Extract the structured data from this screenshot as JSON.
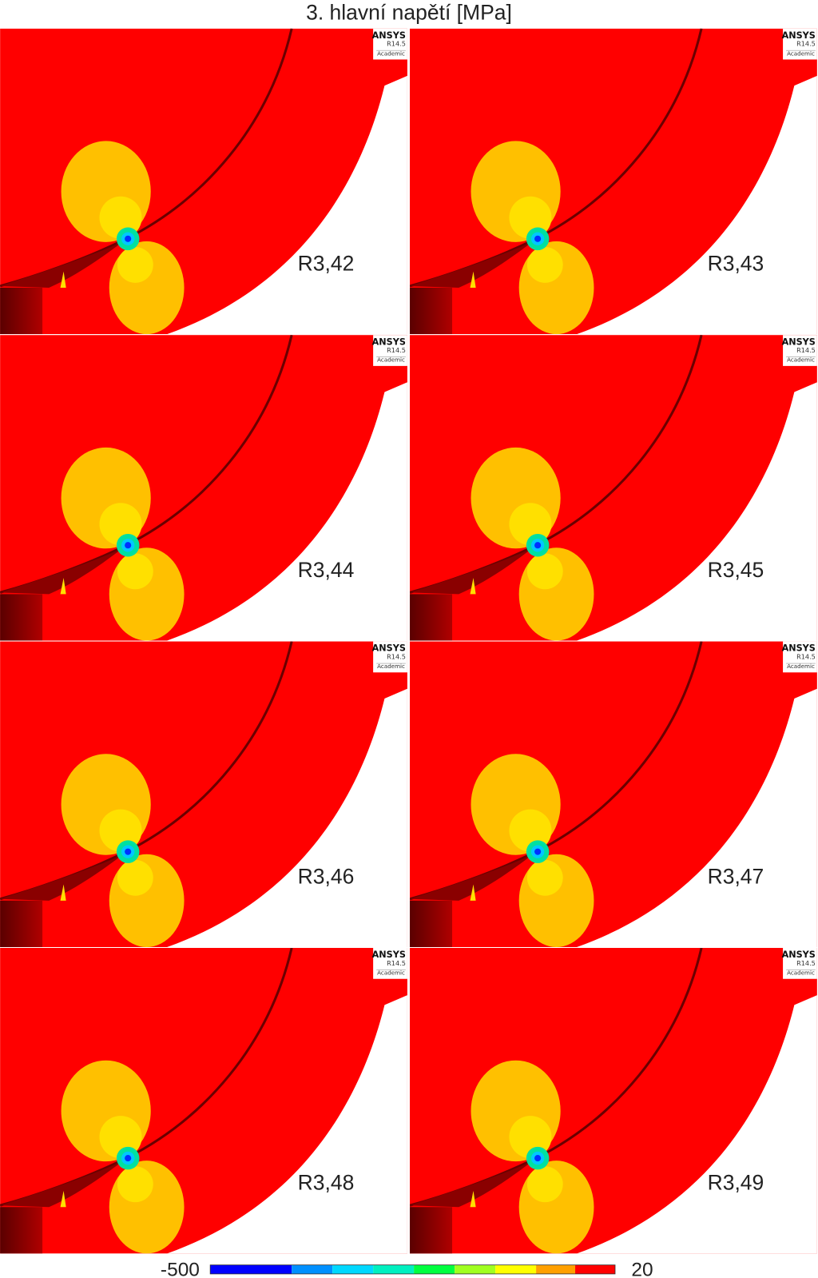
{
  "title": "3. hlavní napětí [MPa]",
  "badge": {
    "brand": "ANSYS",
    "version": "R14.5",
    "license": "Academic"
  },
  "panels": [
    {
      "label": "R3,42"
    },
    {
      "label": "R3,43"
    },
    {
      "label": "R3,44"
    },
    {
      "label": "R3,45"
    },
    {
      "label": "R3,46"
    },
    {
      "label": "R3,47"
    },
    {
      "label": "R3,48"
    },
    {
      "label": "R3,49"
    }
  ],
  "colorbar": {
    "min": -500,
    "max": 20
  }
}
